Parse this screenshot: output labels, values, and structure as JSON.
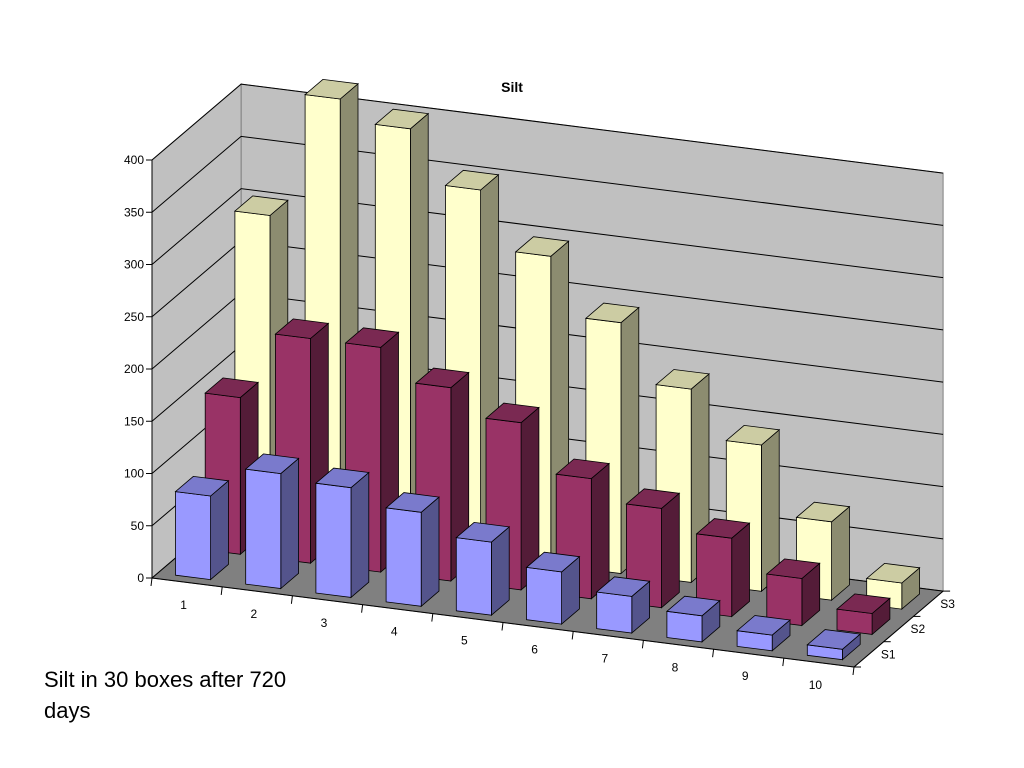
{
  "caption": "Silt in 30 boxes after 720 days",
  "chart_data": {
    "type": "bar",
    "title": "Silt",
    "xlabel": "",
    "ylabel": "",
    "ylim": [
      0,
      400
    ],
    "yticks": [
      0,
      50,
      100,
      150,
      200,
      250,
      300,
      350,
      400
    ],
    "categories": [
      "1",
      "2",
      "3",
      "4",
      "5",
      "6",
      "7",
      "8",
      "9",
      "10"
    ],
    "grid": true,
    "three_d": true,
    "series": [
      {
        "name": "S1",
        "color": "#9999ff",
        "values": [
          80,
          110,
          105,
          90,
          70,
          50,
          35,
          25,
          15,
          10
        ]
      },
      {
        "name": "S2",
        "color": "#993366",
        "values": [
          150,
          215,
          215,
          185,
          160,
          115,
          95,
          75,
          45,
          20
        ]
      },
      {
        "name": "S3",
        "color": "#ffffcc",
        "values": [
          300,
          420,
          400,
          350,
          295,
          240,
          185,
          140,
          75,
          25
        ]
      }
    ]
  }
}
